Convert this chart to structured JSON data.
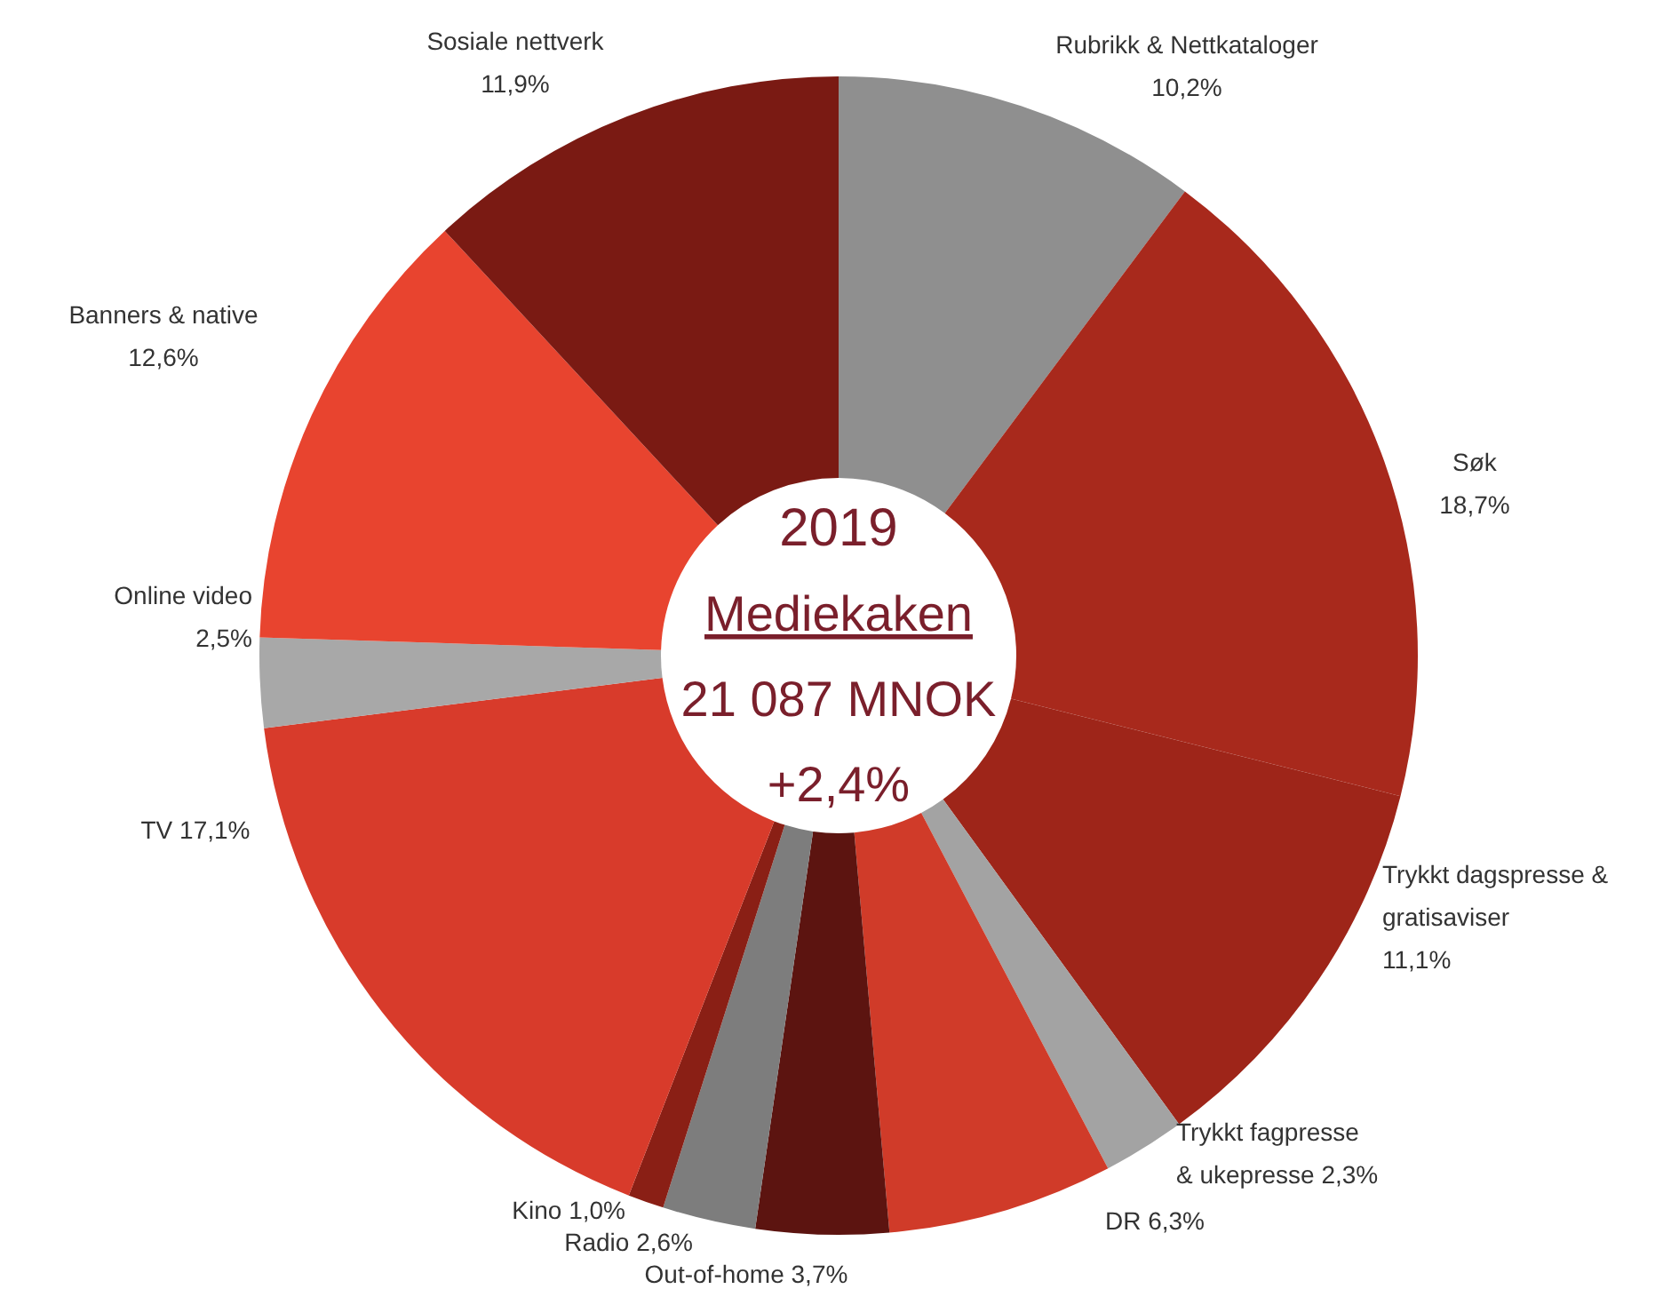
{
  "chart_data": {
    "type": "donut",
    "title": "2019",
    "subtitle": "Mediekaken",
    "annotations": [
      "21 087 MNOK",
      "+2,4%"
    ],
    "categories": [
      "Rubrikk & Nettkataloger",
      "Søk",
      "Trykkt dagspresse & gratisaviser",
      "Trykkt fagpresse & ukepresse",
      "DR",
      "Out-of-home",
      "Radio",
      "Kino",
      "TV",
      "Online video",
      "Banners & native",
      "Sosiale nettverk"
    ],
    "values": [
      10.2,
      18.7,
      11.1,
      2.3,
      6.3,
      3.7,
      2.6,
      1.0,
      17.1,
      2.5,
      12.6,
      11.9
    ],
    "value_labels": [
      "10,2%",
      "18,7%",
      "11,1%",
      "2,3%",
      "6,3%",
      "3,7%",
      "2,6%",
      "1,0%",
      "17,1%",
      "2,5%",
      "12,6%",
      "11,9%"
    ],
    "colors": [
      "#8f8f8f",
      "#a8291c",
      "#9e2519",
      "#a3a3a3",
      "#d03b29",
      "#5c1410",
      "#7d7d7d",
      "#8a1f15",
      "#d83b2b",
      "#a8a8a8",
      "#e8442f",
      "#7a1a13"
    ]
  }
}
